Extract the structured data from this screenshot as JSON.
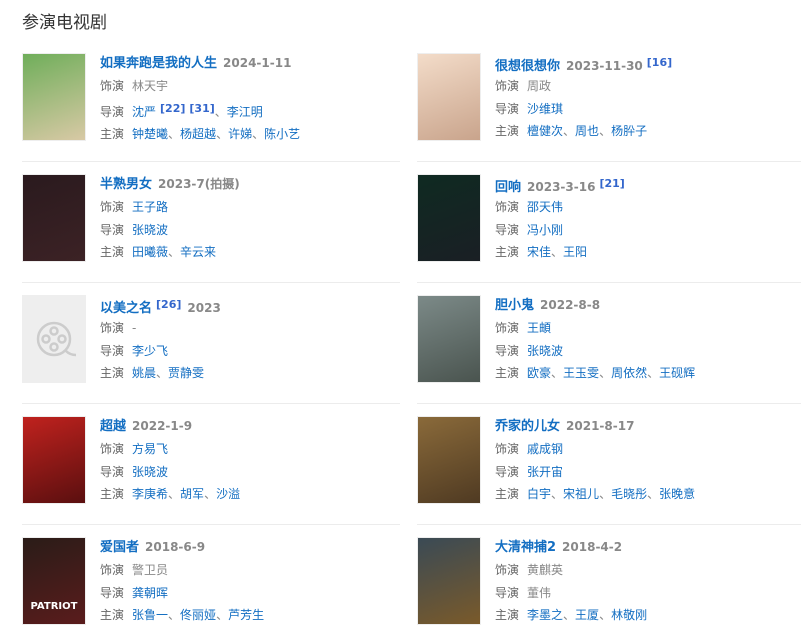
{
  "section_title": "参演电视剧",
  "labels": {
    "role": "饰演",
    "director": "导演",
    "cast": "主演"
  },
  "items": [
    {
      "title": "如果奔跑是我的人生",
      "date": "2024-1-11",
      "ref": "",
      "role": {
        "name": "林天宇",
        "link": false
      },
      "directors": [
        {
          "name": "沈严",
          "refs": [
            "[22]",
            "[31]"
          ]
        },
        {
          "name": "李江明",
          "refs": []
        }
      ],
      "cast": [
        "钟楚曦",
        "杨超越",
        "许娣",
        "陈小艺"
      ],
      "poster": [
        "#6fae5a",
        "#d8c9a5"
      ]
    },
    {
      "title": "很想很想你",
      "date": "2023-11-30",
      "ref_after_date": "[16]",
      "role": {
        "name": "周政",
        "link": false
      },
      "directors": [
        {
          "name": "沙维琪",
          "refs": []
        }
      ],
      "cast": [
        "檀健次",
        "周也",
        "杨肸子"
      ],
      "poster": [
        "#f3dcc9",
        "#c9a48c"
      ]
    },
    {
      "title": "半熟男女",
      "date": "2023-7(拍摄)",
      "role": {
        "name": "王子路",
        "link": true
      },
      "directors": [
        {
          "name": "张晓波",
          "refs": []
        }
      ],
      "cast": [
        "田曦薇",
        "辛云来"
      ],
      "poster": [
        "#2a1a1e",
        "#3c2225"
      ]
    },
    {
      "title": "回响",
      "date": "2023-3-16",
      "ref_after_date": "[21]",
      "role": {
        "name": "邵天伟",
        "link": true
      },
      "directors": [
        {
          "name": "冯小刚",
          "refs": []
        }
      ],
      "cast": [
        "宋佳",
        "王阳"
      ],
      "poster": [
        "#0f2a22",
        "#1a1f24"
      ]
    },
    {
      "title": "以美之名",
      "ref_before_date": "[26]",
      "date": "2023",
      "role": {
        "name": "-",
        "link": false
      },
      "directors": [
        {
          "name": "李少飞",
          "refs": []
        }
      ],
      "cast": [
        "姚晨",
        "贾静雯"
      ],
      "poster": "placeholder",
      "placeholder_icon": "film-reel-icon"
    },
    {
      "title": "胆小鬼",
      "date": "2022-8-8",
      "role": {
        "name": "王頔",
        "link": true
      },
      "directors": [
        {
          "name": "张晓波",
          "refs": []
        }
      ],
      "cast": [
        "欧豪",
        "王玉雯",
        "周依然",
        "王砚辉"
      ],
      "poster": [
        "#7c8a88",
        "#4a544f"
      ]
    },
    {
      "title": "超越",
      "date": "2022-1-9",
      "role": {
        "name": "方易飞",
        "link": true
      },
      "directors": [
        {
          "name": "张晓波",
          "refs": []
        }
      ],
      "cast": [
        "李庚希",
        "胡军",
        "沙溢"
      ],
      "poster": [
        "#c0221e",
        "#5a0f0f"
      ]
    },
    {
      "title": "乔家的儿女",
      "date": "2021-8-17",
      "role": {
        "name": "戚成钢",
        "link": true
      },
      "directors": [
        {
          "name": "张开宙",
          "refs": []
        }
      ],
      "cast": [
        "白宇",
        "宋祖儿",
        "毛晓彤",
        "张晚意"
      ],
      "poster": [
        "#8a6a3a",
        "#4f3a22"
      ]
    },
    {
      "title": "爱国者",
      "date": "2018-6-9",
      "role": {
        "name": "警卫员",
        "link": false
      },
      "directors": [
        {
          "name": "龚朝晖",
          "refs": []
        }
      ],
      "cast": [
        "张鲁一",
        "佟丽娅",
        "芦芳生"
      ],
      "poster": [
        "#2a1c18",
        "#5a1c1c"
      ],
      "poster_text": "PATRIOT"
    },
    {
      "title": "大清神捕2",
      "date": "2018-4-2",
      "role": {
        "name": "黄麒英",
        "link": false
      },
      "directors": [
        {
          "name": "董伟",
          "refs": []
        }
      ],
      "cast": [
        "李墨之",
        "王厦",
        "林敬刚"
      ],
      "poster": [
        "#3a4a55",
        "#7a5a2a"
      ]
    }
  ]
}
